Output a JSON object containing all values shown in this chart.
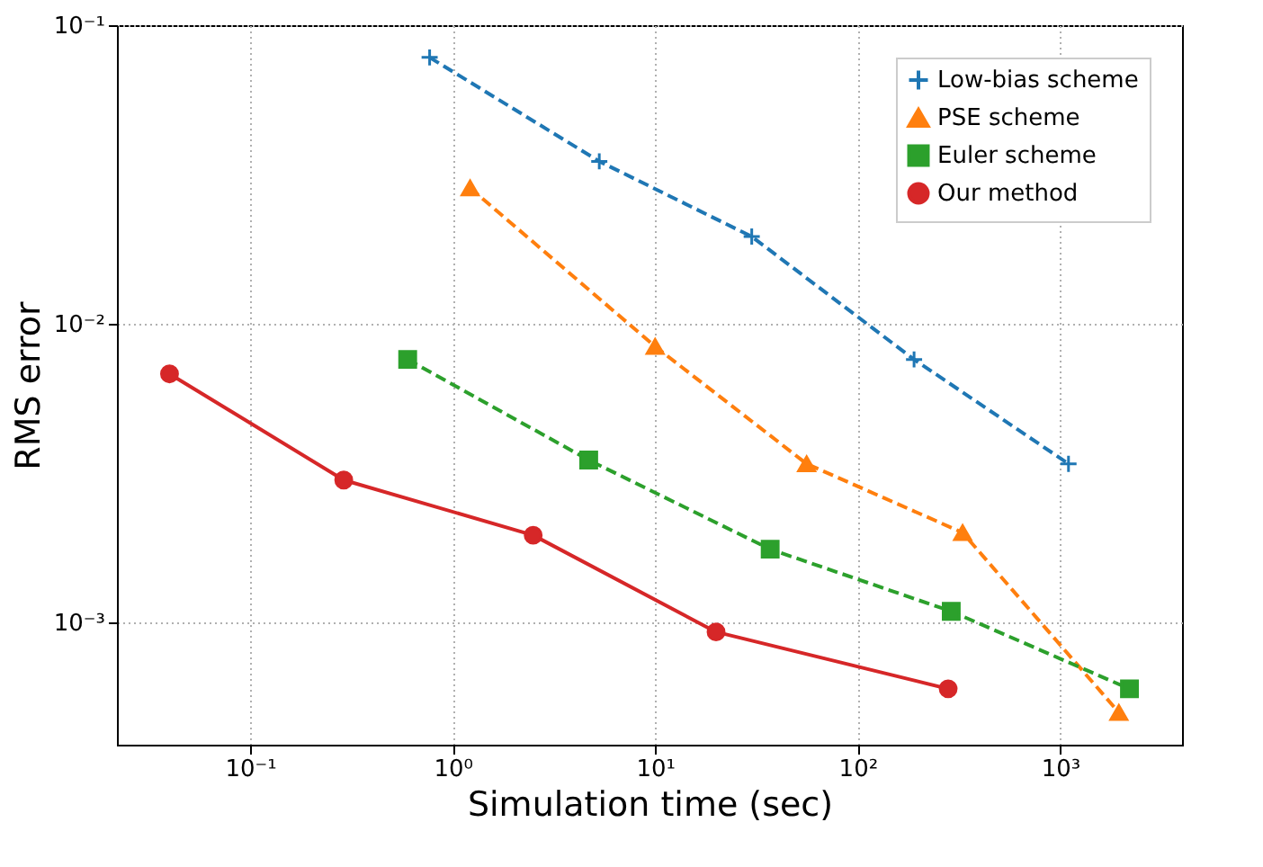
{
  "chart_data": {
    "type": "line",
    "xlabel": "Simulation time (sec)",
    "ylabel": "RMS error",
    "log": "xy",
    "xlim": [
      0.022,
      4000
    ],
    "ylim": [
      0.00039,
      0.1
    ],
    "xticks": [
      {
        "value": 0.1,
        "label": "10⁻¹"
      },
      {
        "value": 1,
        "label": "10⁰"
      },
      {
        "value": 10,
        "label": "10¹"
      },
      {
        "value": 100,
        "label": "10²"
      },
      {
        "value": 1000,
        "label": "10³"
      }
    ],
    "yticks": [
      {
        "value": 0.001,
        "label": "10⁻³"
      },
      {
        "value": 0.01,
        "label": "10⁻²"
      },
      {
        "value": 0.1,
        "label": "10⁻¹"
      }
    ],
    "grid": true,
    "legend": "top right",
    "series": [
      {
        "name": "Low-bias scheme",
        "color": "#1f77b4",
        "marker": "cross",
        "line_style": "dashed",
        "x": [
          0.77,
          5.3,
          30,
          190,
          1100
        ],
        "values": [
          0.078,
          0.035,
          0.0196,
          0.0076,
          0.0034
        ]
      },
      {
        "name": "PSE scheme",
        "color": "#ff7f0e",
        "marker": "triangle",
        "line_style": "dashed",
        "x": [
          1.22,
          10,
          56,
          330,
          1950
        ],
        "values": [
          0.0285,
          0.0084,
          0.0034,
          0.002,
          0.0005
        ]
      },
      {
        "name": "Euler scheme",
        "color": "#2ca02c",
        "marker": "square",
        "line_style": "dashed",
        "x": [
          0.6,
          4.7,
          37,
          290,
          2200
        ],
        "values": [
          0.0076,
          0.0035,
          0.00176,
          0.00109,
          0.0006
        ]
      },
      {
        "name": "Our method",
        "color": "#d62728",
        "marker": "circle",
        "line_style": "solid",
        "x": [
          0.04,
          0.29,
          2.5,
          20,
          280
        ],
        "values": [
          0.0068,
          0.003,
          0.00196,
          0.00093,
          0.0006
        ]
      }
    ]
  }
}
